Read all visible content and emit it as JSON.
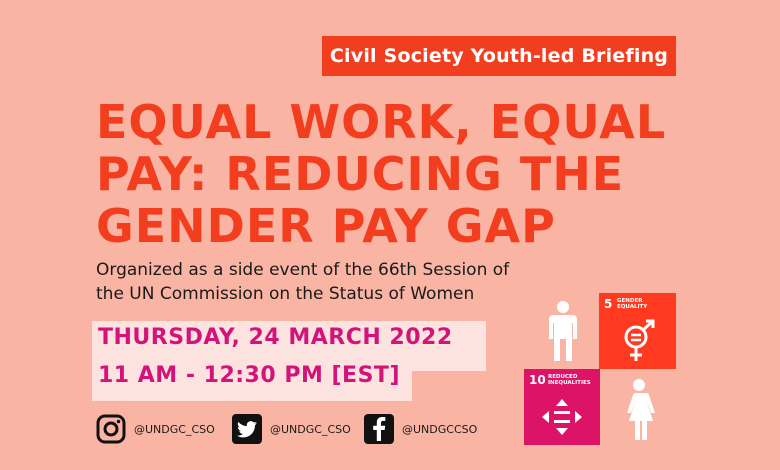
{
  "tag_label": "Civil Society Youth-led Briefing",
  "title_lines": [
    "EQUAL WORK, EQUAL",
    "PAY: REDUCING THE",
    "GENDER PAY GAP"
  ],
  "subtitle_lines": [
    "Organized as a side event of the 66th Session of",
    "the UN Commission on the Status of Women"
  ],
  "date": "THURSDAY, 24 MARCH 2022",
  "time": "11 AM - 12:30 PM [EST]",
  "social": [
    {
      "icon": "instagram-icon",
      "handle": "@UNDGC_CSO"
    },
    {
      "icon": "twitter-icon",
      "handle": "@UNDGC_CSO"
    },
    {
      "icon": "facebook-icon",
      "handle": "@UNDGCCSO"
    }
  ],
  "sdg5": {
    "number": "5",
    "label_line1": "GENDER",
    "label_line2": "EQUALITY",
    "color": "#ff3a21"
  },
  "sdg10": {
    "number": "10",
    "label_line1": "REDUCED",
    "label_line2": "INEQUALITIES",
    "color": "#dd1367"
  },
  "colors": {
    "background": "#f9b4a3",
    "accent_red": "#f23e1e",
    "accent_magenta": "#d3137a",
    "highlight": "#fde3df"
  }
}
